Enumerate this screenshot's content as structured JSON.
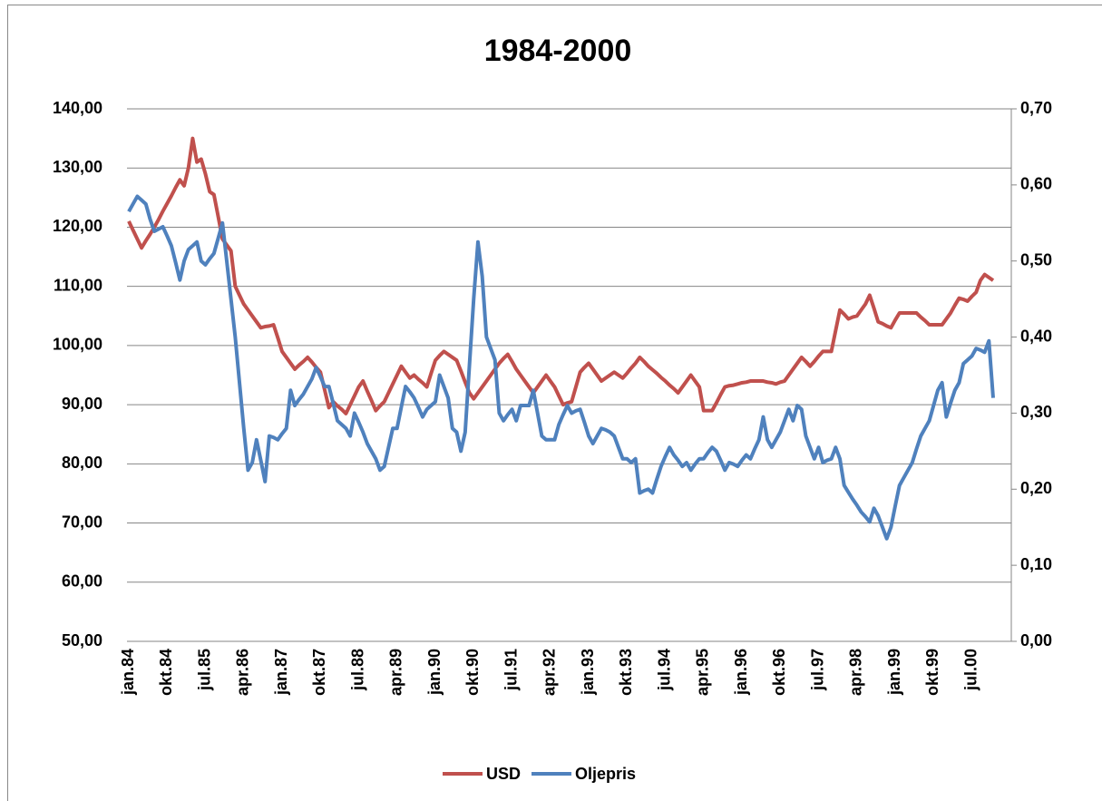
{
  "chart_data": {
    "type": "line",
    "title": "1984-2000",
    "categories": [
      "jan.84",
      null,
      null,
      null,
      null,
      null,
      null,
      null,
      null,
      "okt.84",
      null,
      null,
      null,
      null,
      null,
      null,
      null,
      null,
      "jul.85",
      null,
      null,
      null,
      null,
      null,
      null,
      null,
      null,
      "apr.86",
      null,
      null,
      null,
      null,
      null,
      null,
      null,
      null,
      "jan.87",
      null,
      null,
      null,
      null,
      null,
      null,
      null,
      null,
      "okt.87",
      null,
      null,
      null,
      null,
      null,
      null,
      null,
      null,
      "jul.88",
      null,
      null,
      null,
      null,
      null,
      null,
      null,
      null,
      "apr.89",
      null,
      null,
      null,
      null,
      null,
      null,
      null,
      null,
      "jan.90",
      null,
      null,
      null,
      null,
      null,
      null,
      null,
      null,
      "okt.90",
      null,
      null,
      null,
      null,
      null,
      null,
      null,
      null,
      "jul.91",
      null,
      null,
      null,
      null,
      null,
      null,
      null,
      null,
      "apr.92",
      null,
      null,
      null,
      null,
      null,
      null,
      null,
      null,
      "jan.93",
      null,
      null,
      null,
      null,
      null,
      null,
      null,
      null,
      "okt.93",
      null,
      null,
      null,
      null,
      null,
      null,
      null,
      null,
      "jul.94",
      null,
      null,
      null,
      null,
      null,
      null,
      null,
      null,
      "apr.95",
      null,
      null,
      null,
      null,
      null,
      null,
      null,
      null,
      "jan.96",
      null,
      null,
      null,
      null,
      null,
      null,
      null,
      null,
      "okt.96",
      null,
      null,
      null,
      null,
      null,
      null,
      null,
      null,
      "jul.97",
      null,
      null,
      null,
      null,
      null,
      null,
      null,
      null,
      "apr.98",
      null,
      null,
      null,
      null,
      null,
      null,
      null,
      null,
      "jan.99",
      null,
      null,
      null,
      null,
      null,
      null,
      null,
      null,
      "okt.99",
      null,
      null,
      null,
      null,
      null,
      null,
      null,
      null,
      "jul.00",
      null,
      null,
      null,
      null,
      null
    ],
    "series": [
      {
        "name": "USD",
        "color": "#c0504d",
        "axis": "y",
        "values": [
          121.0,
          119.5,
          118.0,
          116.5,
          117.7,
          118.8,
          120.0,
          121.3,
          122.7,
          124.0,
          125.3,
          126.7,
          128.0,
          127.0,
          130.0,
          135.0,
          131.0,
          131.5,
          129.0,
          126.0,
          125.5,
          121.8,
          118.0,
          117.0,
          116.0,
          110.0,
          108.5,
          107.0,
          106.0,
          105.0,
          104.0,
          103.0,
          103.2,
          103.3,
          103.5,
          101.3,
          99.0,
          98.0,
          97.0,
          96.0,
          96.7,
          97.3,
          98.0,
          97.2,
          96.3,
          95.5,
          92.5,
          89.5,
          90.5,
          89.8,
          89.2,
          88.5,
          90.0,
          91.5,
          93.0,
          94.0,
          92.3,
          90.7,
          89.0,
          89.8,
          90.5,
          92.0,
          93.5,
          95.0,
          96.5,
          95.5,
          94.5,
          95.0,
          94.3,
          93.7,
          93.0,
          95.3,
          97.5,
          98.3,
          99.0,
          98.5,
          98.0,
          97.5,
          95.7,
          93.8,
          92.0,
          91.0,
          92.0,
          93.0,
          94.0,
          95.0,
          96.0,
          97.0,
          97.8,
          98.5,
          97.3,
          96.0,
          95.0,
          94.0,
          93.0,
          92.0,
          93.0,
          94.0,
          95.0,
          94.0,
          93.0,
          91.5,
          90.0,
          90.3,
          90.5,
          93.0,
          95.5,
          96.3,
          97.0,
          96.0,
          95.0,
          94.0,
          94.5,
          95.0,
          95.5,
          95.0,
          94.5,
          95.3,
          96.2,
          97.0,
          98.0,
          97.3,
          96.5,
          95.9,
          95.3,
          94.6,
          94.0,
          93.3,
          92.7,
          92.0,
          93.0,
          94.0,
          95.0,
          94.0,
          93.0,
          89.0,
          89.0,
          89.0,
          90.3,
          91.7,
          93.0,
          93.2,
          93.3,
          93.5,
          93.7,
          93.8,
          94.0,
          94.0,
          94.0,
          94.0,
          93.8,
          93.7,
          93.5,
          93.8,
          94.0,
          95.0,
          96.0,
          97.0,
          98.0,
          97.3,
          96.5,
          97.3,
          98.2,
          99.0,
          99.0,
          99.0,
          102.5,
          106.0,
          105.3,
          104.5,
          104.8,
          105.0,
          106.0,
          107.0,
          108.5,
          106.3,
          104.0,
          103.7,
          103.3,
          103.0,
          104.3,
          105.5,
          105.5,
          105.5,
          105.5,
          105.5,
          104.8,
          104.2,
          103.5,
          103.5,
          103.5,
          103.5,
          104.5,
          105.5,
          106.8,
          108.0,
          107.8,
          107.5,
          108.3,
          109.0,
          111.0,
          112.0,
          111.5,
          111.0
        ]
      },
      {
        "name": "Oljepris",
        "color": "#4f81bd",
        "axis": "y2",
        "values": [
          0.565,
          0.575,
          0.585,
          0.58,
          0.575,
          0.555,
          0.539,
          0.542,
          0.545,
          0.533,
          0.52,
          0.498,
          0.475,
          0.5,
          0.515,
          0.52,
          0.525,
          0.5,
          0.495,
          0.503,
          0.51,
          0.53,
          0.55,
          0.5,
          0.45,
          0.4,
          0.34,
          0.28,
          0.225,
          0.235,
          0.265,
          0.238,
          0.21,
          0.27,
          0.268,
          0.265,
          0.273,
          0.28,
          0.33,
          0.31,
          0.318,
          0.325,
          0.335,
          0.345,
          0.36,
          0.348,
          0.335,
          0.335,
          0.313,
          0.29,
          0.285,
          0.28,
          0.27,
          0.3,
          0.288,
          0.275,
          0.26,
          0.25,
          0.24,
          0.225,
          0.23,
          0.255,
          0.28,
          0.28,
          0.308,
          0.335,
          0.328,
          0.32,
          0.308,
          0.295,
          0.305,
          0.31,
          0.315,
          0.35,
          0.335,
          0.32,
          0.28,
          0.275,
          0.25,
          0.275,
          0.363,
          0.45,
          0.525,
          0.48,
          0.4,
          0.385,
          0.37,
          0.3,
          0.29,
          0.298,
          0.305,
          0.29,
          0.31,
          0.31,
          0.31,
          0.33,
          0.3,
          0.27,
          0.265,
          0.265,
          0.265,
          0.285,
          0.298,
          0.31,
          0.3,
          0.303,
          0.305,
          0.288,
          0.27,
          0.26,
          0.27,
          0.28,
          0.278,
          0.275,
          0.27,
          0.255,
          0.24,
          0.24,
          0.235,
          0.24,
          0.195,
          0.198,
          0.2,
          0.195,
          0.213,
          0.23,
          0.243,
          0.255,
          0.245,
          0.238,
          0.23,
          0.235,
          0.225,
          0.233,
          0.24,
          0.24,
          0.248,
          0.255,
          0.25,
          0.238,
          0.225,
          0.235,
          0.233,
          0.23,
          0.238,
          0.245,
          0.24,
          0.253,
          0.265,
          0.295,
          0.265,
          0.255,
          0.265,
          0.275,
          0.29,
          0.305,
          0.29,
          0.31,
          0.305,
          0.27,
          0.255,
          0.24,
          0.255,
          0.235,
          0.238,
          0.24,
          0.255,
          0.24,
          0.205,
          0.196,
          0.187,
          0.179,
          0.17,
          0.164,
          0.157,
          0.175,
          0.165,
          0.15,
          0.135,
          0.15,
          0.178,
          0.205,
          0.215,
          0.225,
          0.235,
          0.253,
          0.27,
          0.28,
          0.29,
          0.31,
          0.33,
          0.34,
          0.295,
          0.313,
          0.33,
          0.34,
          0.365,
          0.37,
          0.375,
          0.385,
          0.383,
          0.38,
          0.395,
          0.32
        ]
      }
    ],
    "ylim": [
      50,
      140
    ],
    "yticks": [
      {
        "value": 50,
        "label": "50,00"
      },
      {
        "value": 60,
        "label": "60,00"
      },
      {
        "value": 70,
        "label": "70,00"
      },
      {
        "value": 80,
        "label": "80,00"
      },
      {
        "value": 90,
        "label": "90,00"
      },
      {
        "value": 100,
        "label": "100,00"
      },
      {
        "value": 110,
        "label": "110,00"
      },
      {
        "value": 120,
        "label": "120,00"
      },
      {
        "value": 130,
        "label": "130,00"
      },
      {
        "value": 140,
        "label": "140,00"
      }
    ],
    "y2lim": [
      0,
      0.7
    ],
    "y2ticks": [
      {
        "value": 0,
        "label": "0,00"
      },
      {
        "value": 0.1,
        "label": "0,10"
      },
      {
        "value": 0.2,
        "label": "0,20"
      },
      {
        "value": 0.3,
        "label": "0,30"
      },
      {
        "value": 0.4,
        "label": "0,40"
      },
      {
        "value": 0.5,
        "label": "0,50"
      },
      {
        "value": 0.6,
        "label": "0,60"
      },
      {
        "value": 0.7,
        "label": "0,70"
      }
    ],
    "grid": true,
    "legend": "bottom"
  }
}
